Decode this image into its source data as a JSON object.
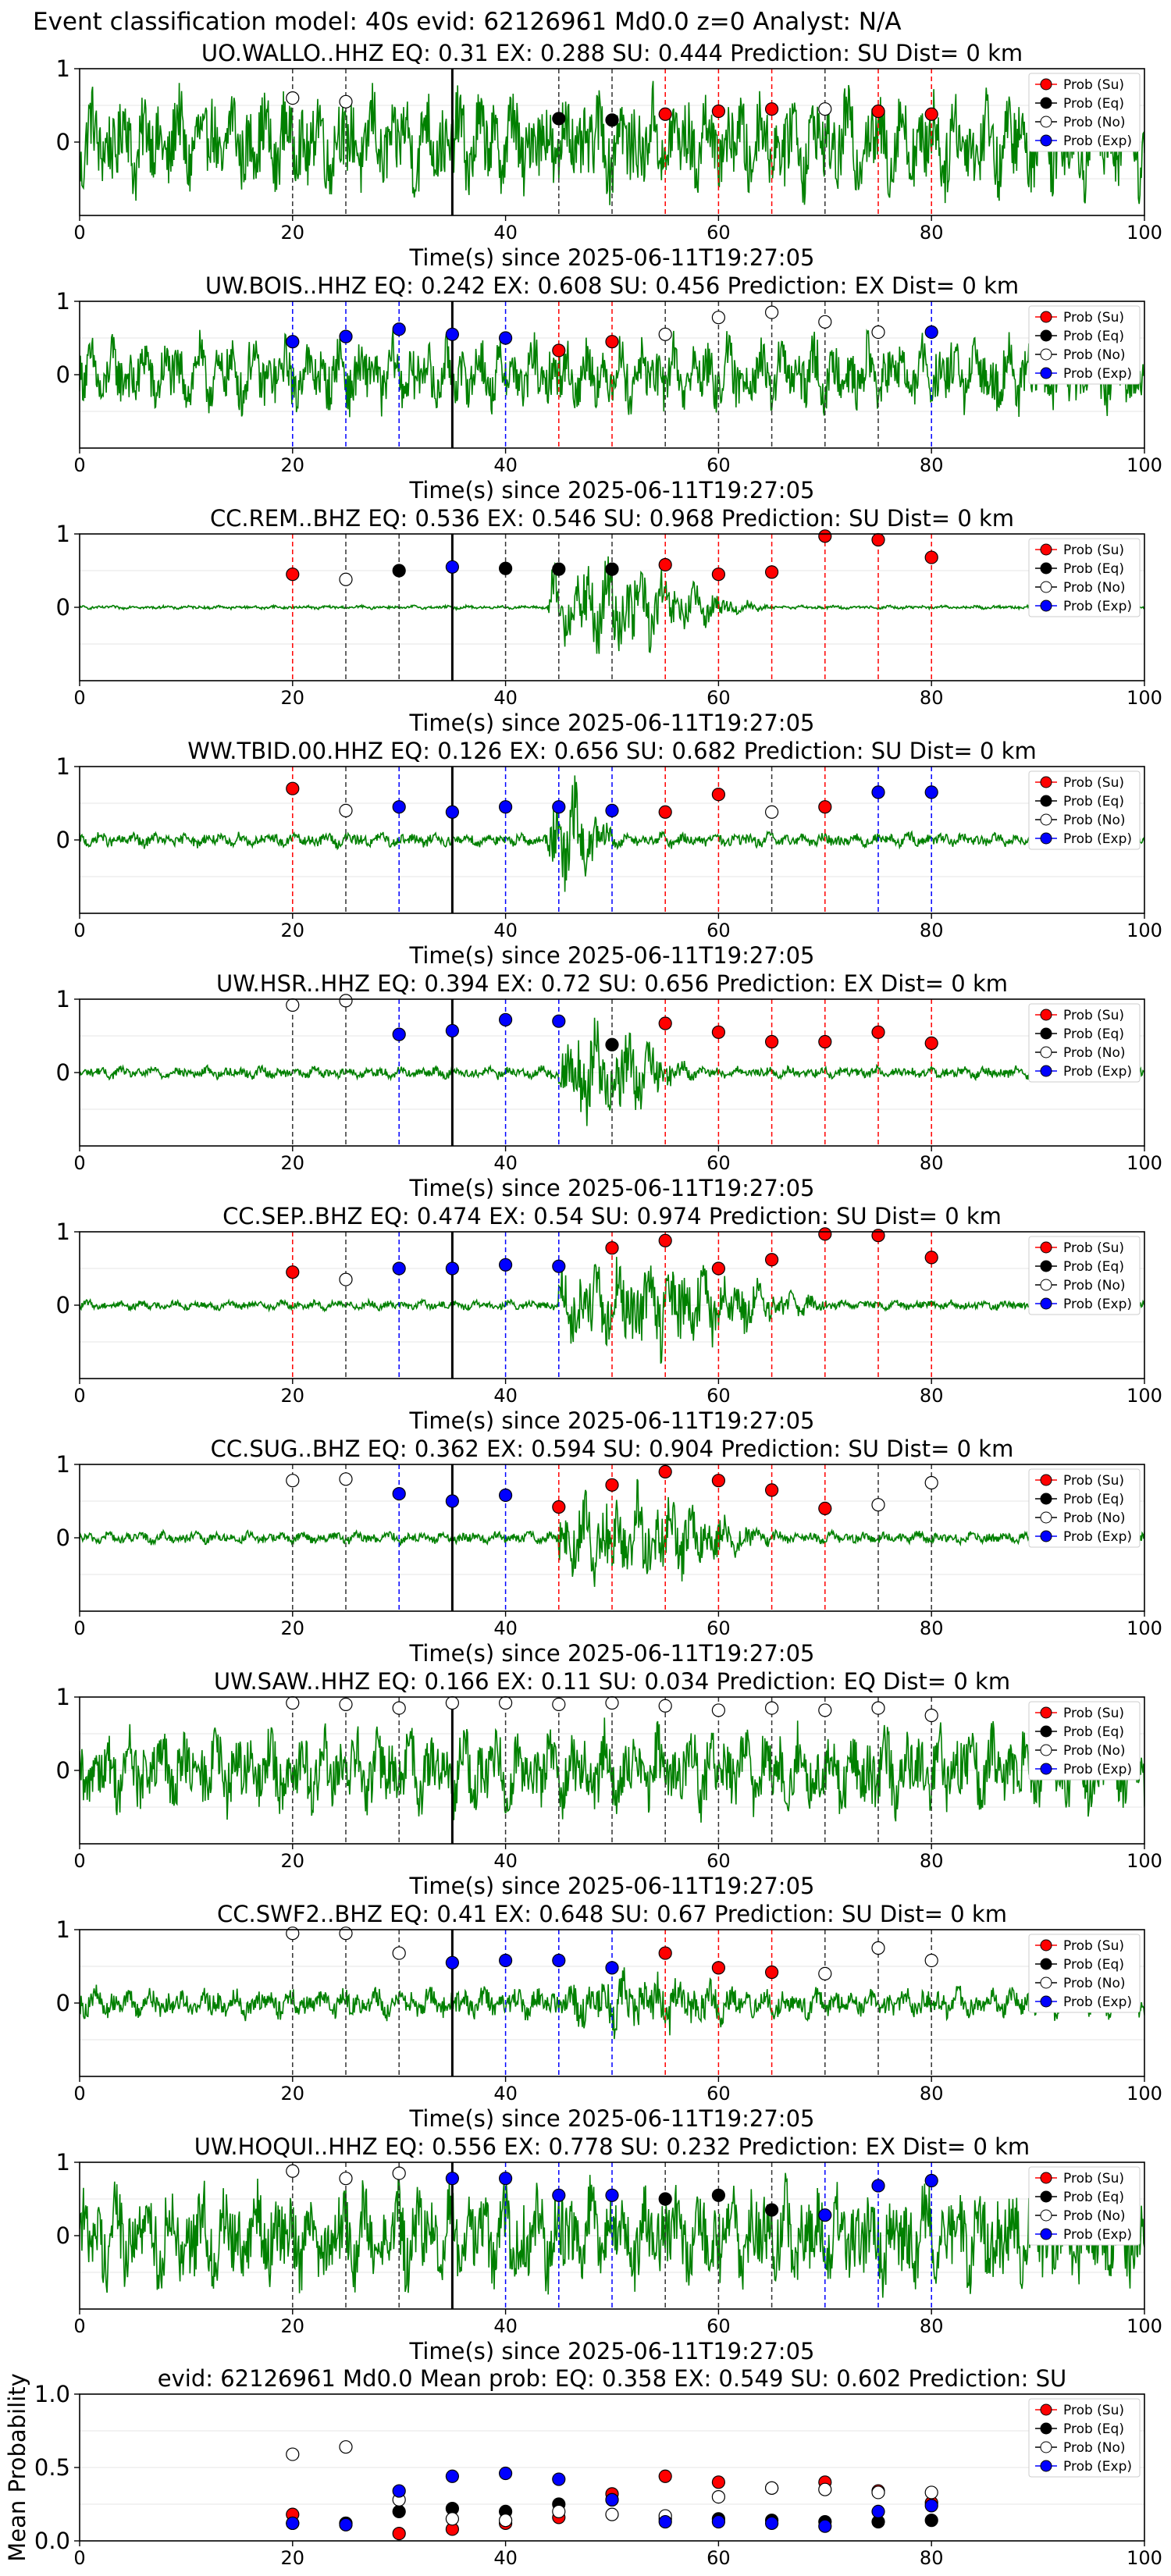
{
  "figure": {
    "suptitle": "Event classification model: 40s evid: 62126961 Md0.0 z=0 Analyst: N/A"
  },
  "legend": {
    "entries": [
      {
        "label": "Prob (Su)",
        "color": "#ff0000",
        "fill": "#ff0000"
      },
      {
        "label": "Prob (Eq)",
        "color": "#000000",
        "fill": "#000000"
      },
      {
        "label": "Prob (No)",
        "color": "#000000",
        "fill": "#ffffff"
      },
      {
        "label": "Prob (Exp)",
        "color": "#0000ff",
        "fill": "#0000ff"
      }
    ],
    "placement": "top-right"
  },
  "colors": {
    "waveform": "#008000",
    "su": "#ff0000",
    "eq": "#000000",
    "no": "#ffffff",
    "exp": "#0000ff",
    "pick_line": "#000000"
  },
  "chart_data": [
    {
      "type": "line",
      "station": "UO.WALLO..HHZ",
      "title": "UO.WALLO..HHZ   EQ: 0.31  EX: 0.288  SU: 0.444   Prediction: SU    Dist= 0 km",
      "xlabel": "Time(s) since 2025-06-11T19:27:05",
      "xlim": [
        0,
        100
      ],
      "ylim": [
        -1,
        1
      ],
      "xticks": [
        "0",
        "20",
        "40",
        "60",
        "80",
        "100"
      ],
      "yticks": [
        "0",
        "1"
      ],
      "pick_time": 35,
      "amp": 0.85,
      "points": [
        {
          "x": 20,
          "y": 0.6,
          "cls": "no"
        },
        {
          "x": 25,
          "y": 0.55,
          "cls": "no"
        },
        {
          "x": 45,
          "y": 0.32,
          "cls": "eq"
        },
        {
          "x": 50,
          "y": 0.3,
          "cls": "eq"
        },
        {
          "x": 55,
          "y": 0.38,
          "cls": "su"
        },
        {
          "x": 60,
          "y": 0.42,
          "cls": "su"
        },
        {
          "x": 65,
          "y": 0.45,
          "cls": "su"
        },
        {
          "x": 70,
          "y": 0.45,
          "cls": "no"
        },
        {
          "x": 75,
          "y": 0.42,
          "cls": "su"
        },
        {
          "x": 80,
          "y": 0.38,
          "cls": "su"
        }
      ]
    },
    {
      "type": "line",
      "station": "UW.BOIS..HHZ",
      "title": "UW.BOIS..HHZ   EQ: 0.242  EX: 0.608  SU: 0.456   Prediction: EX    Dist= 0 km",
      "xlabel": "Time(s) since 2025-06-11T19:27:05",
      "xlim": [
        0,
        100
      ],
      "ylim": [
        -1,
        1
      ],
      "xticks": [
        "0",
        "20",
        "40",
        "60",
        "80",
        "100"
      ],
      "yticks": [
        "0",
        "1"
      ],
      "pick_time": 35,
      "amp": 0.6,
      "points": [
        {
          "x": 20,
          "y": 0.45,
          "cls": "exp"
        },
        {
          "x": 25,
          "y": 0.52,
          "cls": "exp"
        },
        {
          "x": 30,
          "y": 0.62,
          "cls": "exp"
        },
        {
          "x": 35,
          "y": 0.55,
          "cls": "exp"
        },
        {
          "x": 40,
          "y": 0.5,
          "cls": "exp"
        },
        {
          "x": 45,
          "y": 0.33,
          "cls": "su"
        },
        {
          "x": 50,
          "y": 0.45,
          "cls": "su"
        },
        {
          "x": 55,
          "y": 0.55,
          "cls": "no"
        },
        {
          "x": 60,
          "y": 0.78,
          "cls": "no"
        },
        {
          "x": 65,
          "y": 0.85,
          "cls": "no"
        },
        {
          "x": 70,
          "y": 0.72,
          "cls": "no"
        },
        {
          "x": 75,
          "y": 0.58,
          "cls": "no"
        },
        {
          "x": 80,
          "y": 0.58,
          "cls": "exp"
        }
      ]
    },
    {
      "type": "line",
      "station": "CC.REM..BHZ",
      "title": "CC.REM..BHZ   EQ: 0.536  EX: 0.546  SU: 0.968   Prediction: SU    Dist= 0 km",
      "xlabel": "Time(s) since 2025-06-11T19:27:05",
      "xlim": [
        0,
        100
      ],
      "ylim": [
        -1,
        1
      ],
      "xticks": [
        "0",
        "20",
        "40",
        "60",
        "80",
        "100"
      ],
      "yticks": [
        "0",
        "1"
      ],
      "pick_time": 35,
      "amp": 0.03,
      "burst": [
        44,
        66,
        0.8
      ],
      "points": [
        {
          "x": 20,
          "y": 0.45,
          "cls": "su"
        },
        {
          "x": 25,
          "y": 0.38,
          "cls": "no"
        },
        {
          "x": 30,
          "y": 0.5,
          "cls": "eq"
        },
        {
          "x": 35,
          "y": 0.55,
          "cls": "exp"
        },
        {
          "x": 40,
          "y": 0.53,
          "cls": "eq"
        },
        {
          "x": 45,
          "y": 0.52,
          "cls": "eq"
        },
        {
          "x": 50,
          "y": 0.52,
          "cls": "eq"
        },
        {
          "x": 55,
          "y": 0.58,
          "cls": "su"
        },
        {
          "x": 60,
          "y": 0.45,
          "cls": "su"
        },
        {
          "x": 65,
          "y": 0.48,
          "cls": "su"
        },
        {
          "x": 70,
          "y": 0.97,
          "cls": "su"
        },
        {
          "x": 75,
          "y": 0.92,
          "cls": "su"
        },
        {
          "x": 80,
          "y": 0.68,
          "cls": "su"
        }
      ]
    },
    {
      "type": "line",
      "station": "WW.TBID.00.HHZ",
      "title": "WW.TBID.00.HHZ   EQ: 0.126  EX: 0.656  SU: 0.682   Prediction: SU    Dist= 0 km",
      "xlabel": "Time(s) since 2025-06-11T19:27:05",
      "xlim": [
        0,
        100
      ],
      "ylim": [
        -1,
        1
      ],
      "xticks": [
        "0",
        "20",
        "40",
        "60",
        "80",
        "100"
      ],
      "yticks": [
        "0",
        "1"
      ],
      "pick_time": 35,
      "amp": 0.12,
      "burst": [
        44,
        52,
        0.9
      ],
      "points": [
        {
          "x": 20,
          "y": 0.7,
          "cls": "su"
        },
        {
          "x": 25,
          "y": 0.4,
          "cls": "no"
        },
        {
          "x": 30,
          "y": 0.45,
          "cls": "exp"
        },
        {
          "x": 35,
          "y": 0.38,
          "cls": "exp"
        },
        {
          "x": 40,
          "y": 0.45,
          "cls": "exp"
        },
        {
          "x": 45,
          "y": 0.45,
          "cls": "exp"
        },
        {
          "x": 50,
          "y": 0.4,
          "cls": "exp"
        },
        {
          "x": 55,
          "y": 0.38,
          "cls": "su"
        },
        {
          "x": 60,
          "y": 0.62,
          "cls": "su"
        },
        {
          "x": 65,
          "y": 0.38,
          "cls": "no"
        },
        {
          "x": 70,
          "y": 0.45,
          "cls": "su"
        },
        {
          "x": 75,
          "y": 0.65,
          "cls": "exp"
        },
        {
          "x": 80,
          "y": 0.65,
          "cls": "exp"
        }
      ]
    },
    {
      "type": "line",
      "station": "UW.HSR..HHZ",
      "title": "UW.HSR..HHZ   EQ: 0.394  EX: 0.72  SU: 0.656   Prediction: EX    Dist= 0 km",
      "xlabel": "Time(s) since 2025-06-11T19:27:05",
      "xlim": [
        0,
        100
      ],
      "ylim": [
        -1,
        1
      ],
      "xticks": [
        "0",
        "20",
        "40",
        "60",
        "80",
        "100"
      ],
      "yticks": [
        "0",
        "1"
      ],
      "pick_time": 35,
      "amp": 0.1,
      "burst": [
        45,
        60,
        0.9
      ],
      "points": [
        {
          "x": 20,
          "y": 0.92,
          "cls": "no"
        },
        {
          "x": 25,
          "y": 0.98,
          "cls": "no"
        },
        {
          "x": 30,
          "y": 0.52,
          "cls": "exp"
        },
        {
          "x": 35,
          "y": 0.57,
          "cls": "exp"
        },
        {
          "x": 40,
          "y": 0.72,
          "cls": "exp"
        },
        {
          "x": 45,
          "y": 0.7,
          "cls": "exp"
        },
        {
          "x": 50,
          "y": 0.38,
          "cls": "eq"
        },
        {
          "x": 55,
          "y": 0.67,
          "cls": "su"
        },
        {
          "x": 60,
          "y": 0.55,
          "cls": "su"
        },
        {
          "x": 65,
          "y": 0.42,
          "cls": "su"
        },
        {
          "x": 70,
          "y": 0.42,
          "cls": "su"
        },
        {
          "x": 75,
          "y": 0.55,
          "cls": "su"
        },
        {
          "x": 80,
          "y": 0.4,
          "cls": "su"
        }
      ]
    },
    {
      "type": "line",
      "station": "CC.SEP..BHZ",
      "title": "CC.SEP..BHZ   EQ: 0.474  EX: 0.54  SU: 0.974   Prediction: SU    Dist= 0 km",
      "xlabel": "Time(s) since 2025-06-11T19:27:05",
      "xlim": [
        0,
        100
      ],
      "ylim": [
        -1,
        1
      ],
      "xticks": [
        "0",
        "20",
        "40",
        "60",
        "80",
        "100"
      ],
      "yticks": [
        "0",
        "1"
      ],
      "pick_time": 35,
      "amp": 0.08,
      "burst": [
        45,
        75,
        0.85
      ],
      "points": [
        {
          "x": 20,
          "y": 0.45,
          "cls": "su"
        },
        {
          "x": 25,
          "y": 0.35,
          "cls": "no"
        },
        {
          "x": 30,
          "y": 0.5,
          "cls": "exp"
        },
        {
          "x": 35,
          "y": 0.5,
          "cls": "exp"
        },
        {
          "x": 40,
          "y": 0.55,
          "cls": "exp"
        },
        {
          "x": 45,
          "y": 0.53,
          "cls": "exp"
        },
        {
          "x": 50,
          "y": 0.78,
          "cls": "su"
        },
        {
          "x": 55,
          "y": 0.88,
          "cls": "su"
        },
        {
          "x": 60,
          "y": 0.5,
          "cls": "su"
        },
        {
          "x": 65,
          "y": 0.62,
          "cls": "su"
        },
        {
          "x": 70,
          "y": 0.97,
          "cls": "su"
        },
        {
          "x": 75,
          "y": 0.95,
          "cls": "su"
        },
        {
          "x": 80,
          "y": 0.65,
          "cls": "su"
        }
      ]
    },
    {
      "type": "line",
      "station": "CC.SUG..BHZ",
      "title": "CC.SUG..BHZ   EQ: 0.362  EX: 0.594  SU: 0.904   Prediction: SU    Dist= 0 km",
      "xlabel": "Time(s) since 2025-06-11T19:27:05",
      "xlim": [
        0,
        100
      ],
      "ylim": [
        -1,
        1
      ],
      "xticks": [
        "0",
        "20",
        "40",
        "60",
        "80",
        "100"
      ],
      "yticks": [
        "0",
        "1"
      ],
      "pick_time": 35,
      "amp": 0.1,
      "burst": [
        45,
        70,
        0.8
      ],
      "points": [
        {
          "x": 20,
          "y": 0.78,
          "cls": "no"
        },
        {
          "x": 25,
          "y": 0.8,
          "cls": "no"
        },
        {
          "x": 30,
          "y": 0.6,
          "cls": "exp"
        },
        {
          "x": 35,
          "y": 0.5,
          "cls": "exp"
        },
        {
          "x": 40,
          "y": 0.58,
          "cls": "exp"
        },
        {
          "x": 45,
          "y": 0.42,
          "cls": "su"
        },
        {
          "x": 50,
          "y": 0.72,
          "cls": "su"
        },
        {
          "x": 55,
          "y": 0.9,
          "cls": "su"
        },
        {
          "x": 60,
          "y": 0.78,
          "cls": "su"
        },
        {
          "x": 65,
          "y": 0.65,
          "cls": "su"
        },
        {
          "x": 70,
          "y": 0.4,
          "cls": "su"
        },
        {
          "x": 75,
          "y": 0.45,
          "cls": "no"
        },
        {
          "x": 80,
          "y": 0.75,
          "cls": "no"
        }
      ]
    },
    {
      "type": "line",
      "station": "UW.SAW..HHZ",
      "title": "UW.SAW..HHZ   EQ: 0.166  EX: 0.11  SU: 0.034   Prediction: EQ    Dist= 0 km",
      "xlabel": "Time(s) since 2025-06-11T19:27:05",
      "xlim": [
        0,
        100
      ],
      "ylim": [
        -1,
        1
      ],
      "xticks": [
        "0",
        "20",
        "40",
        "60",
        "80",
        "100"
      ],
      "yticks": [
        "0",
        "1"
      ],
      "pick_time": 35,
      "amp": 0.7,
      "points": [
        {
          "x": 20,
          "y": 0.92,
          "cls": "no"
        },
        {
          "x": 25,
          "y": 0.9,
          "cls": "no"
        },
        {
          "x": 30,
          "y": 0.85,
          "cls": "no"
        },
        {
          "x": 35,
          "y": 0.92,
          "cls": "no"
        },
        {
          "x": 40,
          "y": 0.92,
          "cls": "no"
        },
        {
          "x": 45,
          "y": 0.9,
          "cls": "no"
        },
        {
          "x": 50,
          "y": 0.92,
          "cls": "no"
        },
        {
          "x": 55,
          "y": 0.88,
          "cls": "no"
        },
        {
          "x": 60,
          "y": 0.82,
          "cls": "no"
        },
        {
          "x": 65,
          "y": 0.85,
          "cls": "no"
        },
        {
          "x": 70,
          "y": 0.82,
          "cls": "no"
        },
        {
          "x": 75,
          "y": 0.85,
          "cls": "no"
        },
        {
          "x": 80,
          "y": 0.75,
          "cls": "no"
        }
      ]
    },
    {
      "type": "line",
      "station": "CC.SWF2..BHZ",
      "title": "CC.SWF2..BHZ   EQ: 0.41  EX: 0.648  SU: 0.67   Prediction: SU    Dist= 0 km",
      "xlabel": "Time(s) since 2025-06-11T19:27:05",
      "xlim": [
        0,
        100
      ],
      "ylim": [
        -1,
        1
      ],
      "xticks": [
        "0",
        "20",
        "40",
        "60",
        "80",
        "100"
      ],
      "yticks": [
        "0",
        "1"
      ],
      "pick_time": 35,
      "amp": 0.25,
      "burst": [
        46,
        72,
        0.55
      ],
      "points": [
        {
          "x": 20,
          "y": 0.95,
          "cls": "no"
        },
        {
          "x": 25,
          "y": 0.95,
          "cls": "no"
        },
        {
          "x": 30,
          "y": 0.68,
          "cls": "no"
        },
        {
          "x": 35,
          "y": 0.55,
          "cls": "exp"
        },
        {
          "x": 40,
          "y": 0.58,
          "cls": "exp"
        },
        {
          "x": 45,
          "y": 0.58,
          "cls": "exp"
        },
        {
          "x": 50,
          "y": 0.48,
          "cls": "exp"
        },
        {
          "x": 55,
          "y": 0.68,
          "cls": "su"
        },
        {
          "x": 60,
          "y": 0.48,
          "cls": "su"
        },
        {
          "x": 65,
          "y": 0.42,
          "cls": "su"
        },
        {
          "x": 70,
          "y": 0.4,
          "cls": "no"
        },
        {
          "x": 75,
          "y": 0.75,
          "cls": "no"
        },
        {
          "x": 80,
          "y": 0.58,
          "cls": "no"
        }
      ]
    },
    {
      "type": "line",
      "station": "UW.HOQUI..HHZ",
      "title": "UW.HOQUI..HHZ   EQ: 0.556  EX: 0.778  SU: 0.232   Prediction: EX    Dist= 0 km",
      "xlabel": "Time(s) since 2025-06-11T19:27:05",
      "xlim": [
        0,
        100
      ],
      "ylim": [
        -1,
        1
      ],
      "xticks": [
        "0",
        "20",
        "40",
        "60",
        "80",
        "100"
      ],
      "yticks": [
        "0",
        "1"
      ],
      "pick_time": 35,
      "amp": 0.85,
      "points": [
        {
          "x": 20,
          "y": 0.88,
          "cls": "no"
        },
        {
          "x": 25,
          "y": 0.78,
          "cls": "no"
        },
        {
          "x": 30,
          "y": 0.85,
          "cls": "no"
        },
        {
          "x": 35,
          "y": 0.78,
          "cls": "exp"
        },
        {
          "x": 40,
          "y": 0.78,
          "cls": "exp"
        },
        {
          "x": 45,
          "y": 0.55,
          "cls": "exp"
        },
        {
          "x": 50,
          "y": 0.55,
          "cls": "exp"
        },
        {
          "x": 55,
          "y": 0.5,
          "cls": "eq"
        },
        {
          "x": 60,
          "y": 0.55,
          "cls": "eq"
        },
        {
          "x": 65,
          "y": 0.35,
          "cls": "eq"
        },
        {
          "x": 70,
          "y": 0.28,
          "cls": "exp"
        },
        {
          "x": 75,
          "y": 0.68,
          "cls": "exp"
        },
        {
          "x": 80,
          "y": 0.75,
          "cls": "exp"
        }
      ]
    },
    {
      "type": "scatter",
      "station": "mean",
      "title": "evid: 62126961  Md0.0   Mean prob:   EQ: 0.358  EX: 0.549  SU: 0.602   Prediction: SU",
      "ylabel": "Mean Probability",
      "xlim": [
        0,
        100
      ],
      "ylim": [
        0,
        1
      ],
      "xticks": [
        "0",
        "20",
        "40",
        "60",
        "80",
        "100"
      ],
      "yticks": [
        "0.0",
        "0.5",
        "1.0"
      ],
      "x": [
        20,
        25,
        30,
        35,
        40,
        45,
        50,
        55,
        60,
        65,
        70,
        75,
        80
      ],
      "series": [
        {
          "name": "Prob (Su)",
          "cls": "su",
          "values": [
            0.18,
            0.12,
            0.05,
            0.08,
            0.12,
            0.16,
            0.32,
            0.44,
            0.4,
            0.36,
            0.4,
            0.34,
            0.26
          ]
        },
        {
          "name": "Prob (Eq)",
          "cls": "eq",
          "values": [
            0.12,
            0.12,
            0.2,
            0.22,
            0.2,
            0.25,
            0.28,
            0.15,
            0.15,
            0.14,
            0.13,
            0.13,
            0.14
          ]
        },
        {
          "name": "Prob (No)",
          "cls": "no",
          "values": [
            0.59,
            0.64,
            0.28,
            0.15,
            0.14,
            0.2,
            0.18,
            0.17,
            0.3,
            0.36,
            0.35,
            0.33,
            0.33
          ]
        },
        {
          "name": "Prob (Exp)",
          "cls": "exp",
          "values": [
            0.12,
            0.11,
            0.34,
            0.44,
            0.46,
            0.42,
            0.28,
            0.13,
            0.13,
            0.12,
            0.1,
            0.2,
            0.24
          ]
        }
      ]
    }
  ]
}
